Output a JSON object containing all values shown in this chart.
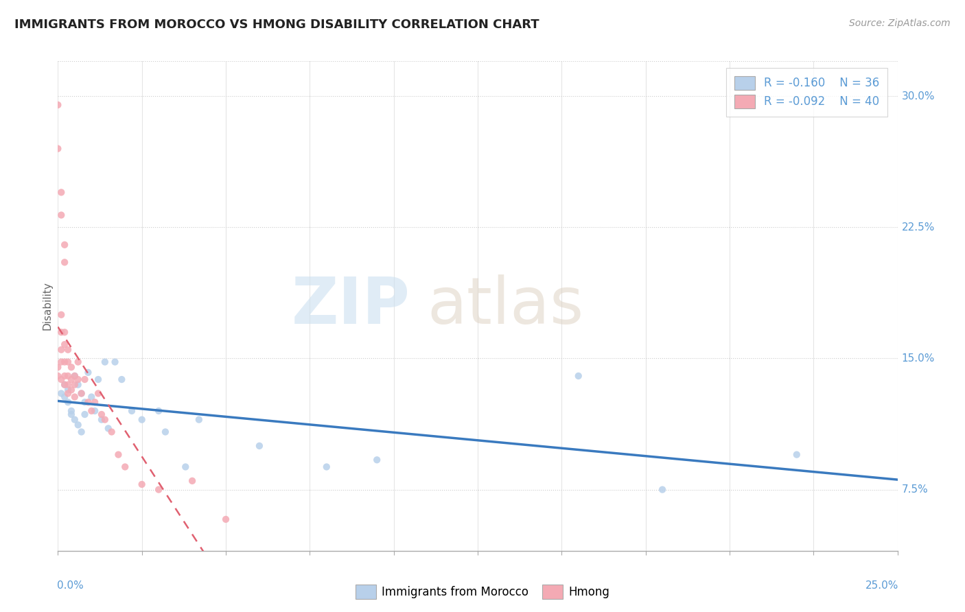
{
  "title": "IMMIGRANTS FROM MOROCCO VS HMONG DISABILITY CORRELATION CHART",
  "source": "Source: ZipAtlas.com",
  "ylabel": "Disability",
  "xmin": 0.0,
  "xmax": 0.25,
  "ymin": 0.04,
  "ymax": 0.32,
  "right_yticks": [
    0.075,
    0.15,
    0.225,
    0.3
  ],
  "right_ytick_labels": [
    "7.5%",
    "15.0%",
    "22.5%",
    "30.0%"
  ],
  "legend_r1": "R = -0.160",
  "legend_n1": "N = 36",
  "legend_r2": "R = -0.092",
  "legend_n2": "N = 40",
  "color_blue": "#b8d0ea",
  "color_pink": "#f4aaB4",
  "color_blue_line": "#3a7abf",
  "color_pink_line": "#e06070",
  "color_axis": "#5b9bd5",
  "morocco_x": [
    0.001,
    0.002,
    0.002,
    0.003,
    0.003,
    0.004,
    0.004,
    0.005,
    0.005,
    0.006,
    0.006,
    0.007,
    0.007,
    0.008,
    0.008,
    0.009,
    0.01,
    0.011,
    0.012,
    0.013,
    0.014,
    0.015,
    0.017,
    0.019,
    0.022,
    0.025,
    0.03,
    0.032,
    0.038,
    0.042,
    0.06,
    0.08,
    0.095,
    0.155,
    0.18,
    0.22
  ],
  "morocco_y": [
    0.13,
    0.135,
    0.128,
    0.132,
    0.125,
    0.12,
    0.118,
    0.115,
    0.14,
    0.135,
    0.112,
    0.13,
    0.108,
    0.125,
    0.118,
    0.142,
    0.128,
    0.12,
    0.138,
    0.115,
    0.148,
    0.11,
    0.148,
    0.138,
    0.12,
    0.115,
    0.12,
    0.108,
    0.088,
    0.115,
    0.1,
    0.088,
    0.092,
    0.14,
    0.075,
    0.095
  ],
  "hmong_x": [
    0.0,
    0.0,
    0.001,
    0.001,
    0.001,
    0.001,
    0.001,
    0.002,
    0.002,
    0.002,
    0.002,
    0.002,
    0.003,
    0.003,
    0.003,
    0.003,
    0.003,
    0.004,
    0.004,
    0.004,
    0.005,
    0.005,
    0.005,
    0.006,
    0.006,
    0.007,
    0.008,
    0.009,
    0.01,
    0.011,
    0.012,
    0.013,
    0.014,
    0.016,
    0.018,
    0.02,
    0.025,
    0.03,
    0.04,
    0.05
  ],
  "hmong_y": [
    0.145,
    0.14,
    0.175,
    0.165,
    0.155,
    0.148,
    0.138,
    0.165,
    0.158,
    0.148,
    0.14,
    0.135,
    0.155,
    0.148,
    0.14,
    0.135,
    0.13,
    0.145,
    0.138,
    0.132,
    0.14,
    0.135,
    0.128,
    0.148,
    0.138,
    0.13,
    0.138,
    0.125,
    0.12,
    0.125,
    0.13,
    0.118,
    0.115,
    0.108,
    0.095,
    0.088,
    0.078,
    0.075,
    0.08,
    0.058
  ],
  "hmong_outliers_x": [
    0.0,
    0.0,
    0.001,
    0.001,
    0.002,
    0.002
  ],
  "hmong_outliers_y": [
    0.295,
    0.27,
    0.245,
    0.232,
    0.215,
    0.205
  ]
}
